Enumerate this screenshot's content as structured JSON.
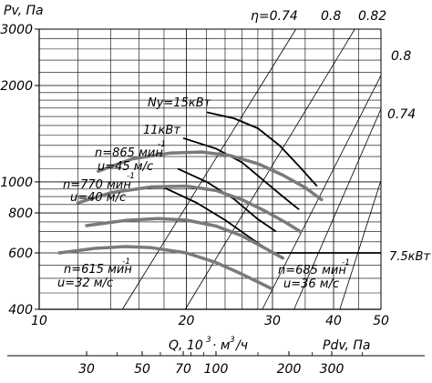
{
  "chart_data": {
    "type": "line",
    "title": "",
    "ylabel": "Pv, Па",
    "xlabel": "Q, 10³ м³/ч",
    "pdv_label": "Pdv, Па",
    "log_scale": true,
    "grid": true,
    "xlim": [
      10,
      50
    ],
    "ylim": [
      400,
      3000
    ],
    "x_ticks": [
      10,
      20,
      30,
      40,
      50
    ],
    "y_ticks": [
      400,
      600,
      800,
      1000,
      2000,
      3000
    ],
    "pdv_ticks": [
      30,
      50,
      70,
      100,
      200,
      300
    ],
    "efficiency_lines": [
      {
        "label": "η=0.74",
        "x": [
          14.8,
          33.5
        ],
        "y": [
          400,
          3000
        ]
      },
      {
        "label": "0.8",
        "x": [
          19.9,
          44.2
        ],
        "y": [
          400,
          3000
        ]
      },
      {
        "label": "0.82",
        "x": [
          28.6,
          50
        ],
        "y": [
          400,
          2150
        ]
      },
      {
        "label": "0.8",
        "x": [
          33.2,
          50
        ],
        "y": [
          400,
          1690
        ]
      },
      {
        "label": "0.74",
        "x": [
          41.2,
          50
        ],
        "y": [
          400,
          1010
        ]
      }
    ],
    "fan_curves": [
      {
        "label": "n=865 мин⁻¹\nu=45 м/с",
        "x": [
          13.2,
          15.5,
          18.5,
          21.5,
          24.5,
          28,
          31.5,
          35,
          37.8
        ],
        "y": [
          1080,
          1180,
          1230,
          1240,
          1210,
          1140,
          1050,
          960,
          880
        ]
      },
      {
        "label": "n=770 мин⁻¹\nu=40 м/с",
        "x": [
          12.0,
          14,
          17,
          20,
          23,
          26,
          29,
          32,
          34.2
        ],
        "y": [
          860,
          925,
          965,
          970,
          940,
          880,
          810,
          745,
          700
        ]
      },
      {
        "label": "",
        "x": [
          12.5,
          15,
          17.5,
          20,
          23,
          26,
          29,
          31.5
        ],
        "y": [
          730,
          758,
          768,
          760,
          728,
          678,
          620,
          578
        ]
      },
      {
        "label": "n=615 мин⁻¹\nu=32 м/с",
        "x": [
          11.0,
          13,
          15,
          17,
          20,
          23,
          26,
          29.8
        ],
        "y": [
          600,
          620,
          628,
          623,
          600,
          560,
          515,
          465
        ]
      }
    ],
    "power_lines": [
      {
        "label": "Ny=15кВт",
        "x": [
          22,
          25,
          28,
          31,
          34,
          37
        ],
        "y": [
          1650,
          1580,
          1470,
          1300,
          1120,
          970
        ]
      },
      {
        "label": "11кВт",
        "x": [
          19.7,
          23,
          26,
          29,
          31.5,
          34
        ],
        "y": [
          1370,
          1270,
          1150,
          1000,
          900,
          820
        ]
      },
      {
        "label": "",
        "x": [
          19.2,
          22,
          25,
          28,
          30.5
        ],
        "y": [
          1100,
          1000,
          885,
          765,
          700
        ]
      },
      {
        "label": "7.5кВт",
        "x": [
          18,
          21,
          24,
          27,
          30,
          50
        ],
        "y": [
          960,
          860,
          760,
          670,
          600,
          600
        ]
      }
    ],
    "curve_label_685": "n=685 мин⁻¹\nu=36 м/с"
  },
  "labels": {
    "pv": "Pv, Па",
    "eta074": "η=0.74",
    "eta08": "0.8",
    "eta082": "0.82",
    "r08": "0.8",
    "r074": "0.74",
    "ny15": "Ny=15кВт",
    "kw11": "11кВт",
    "kw75": "7.5кВт",
    "n865a": "n=865 мин",
    "n865b": "u=45 м/с",
    "n770a": "n=770 мин",
    "n770b": "u=40 м/с",
    "n615a": "n=615 мин",
    "n615b": "u=32 м/с",
    "n685a": "n=685 мин",
    "n685b": "u=36 м/с",
    "minus1": "-1",
    "q": "Q, 10",
    "q3": "3",
    "qm": "· м",
    "qm3": "3",
    "qh": "/ч",
    "pdv": "Pdv, Па"
  }
}
